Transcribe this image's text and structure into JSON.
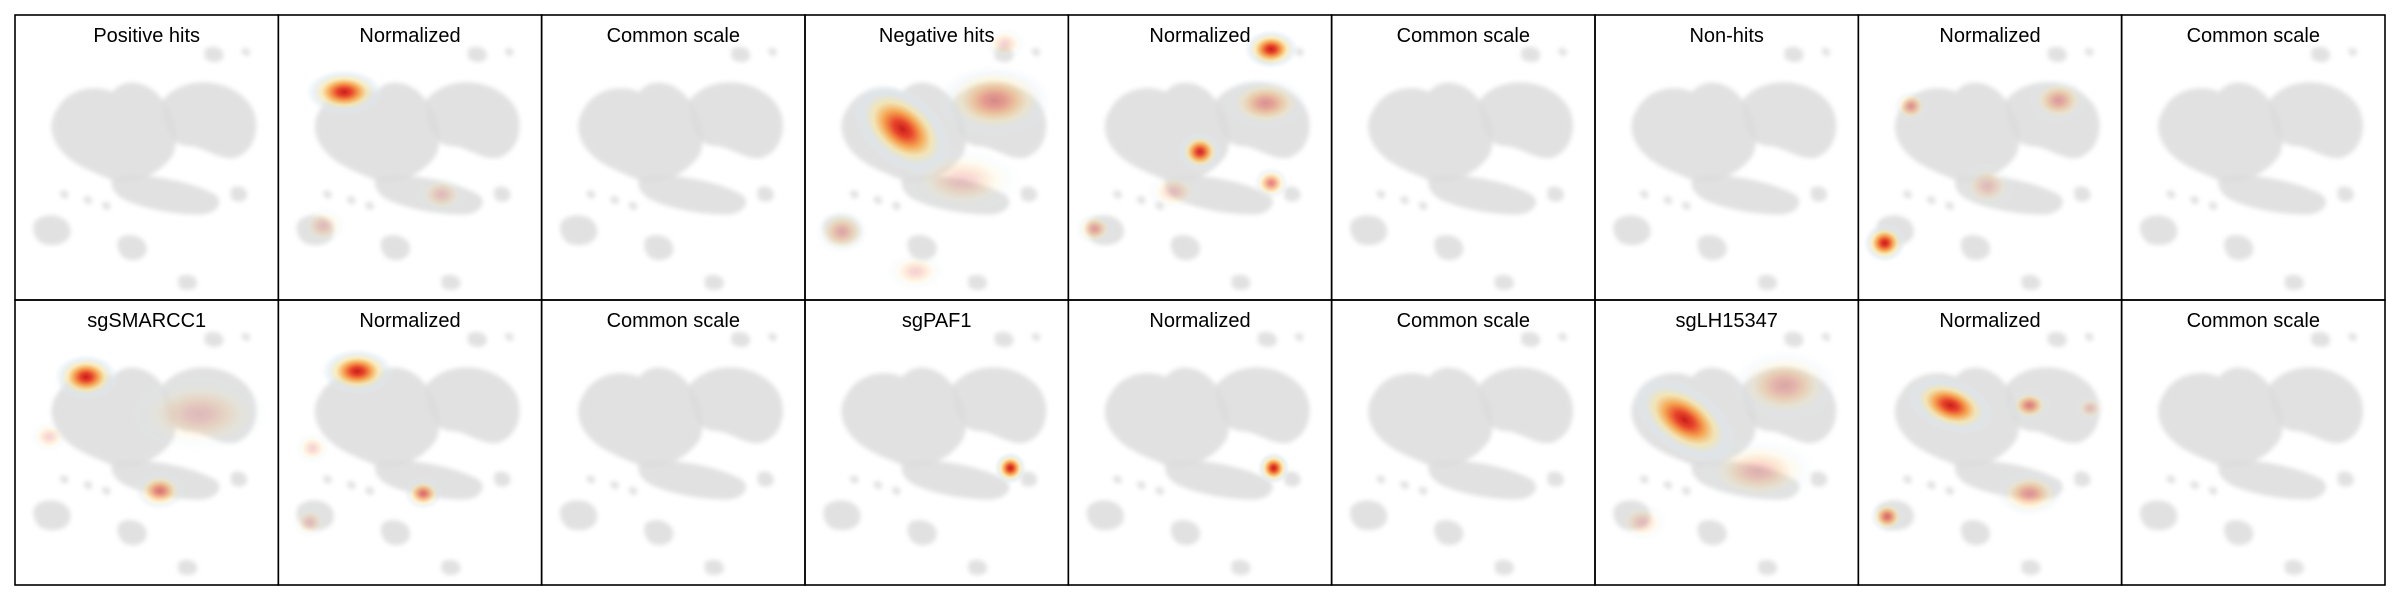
{
  "chart_data": {
    "type": "heatmap",
    "colormap": "YlOrRd density overlay on grey embedding",
    "background_color": "#dcdcdc",
    "frame_color": "#000000",
    "rows": [
      {
        "panels": [
          {
            "title": "Positive hits",
            "hotspots": []
          },
          {
            "title": "Normalized",
            "hotspots": [
              {
                "x": 0.25,
                "y": 0.27,
                "r": 0.07,
                "level": 1.0,
                "elong": 1.7,
                "angle": 0
              },
              {
                "x": 0.17,
                "y": 0.74,
                "r": 0.06,
                "level": 0.2,
                "elong": 1.2,
                "angle": 0
              },
              {
                "x": 0.62,
                "y": 0.63,
                "r": 0.06,
                "level": 0.15,
                "elong": 1.3,
                "angle": 0
              }
            ]
          },
          {
            "title": "Common scale",
            "hotspots": []
          },
          {
            "title": "Negative hits",
            "hotspots": [
              {
                "x": 0.37,
                "y": 0.4,
                "r": 0.11,
                "level": 1.0,
                "elong": 1.6,
                "angle": 40
              },
              {
                "x": 0.72,
                "y": 0.3,
                "r": 0.11,
                "level": 0.45,
                "elong": 1.6,
                "angle": 0
              },
              {
                "x": 0.14,
                "y": 0.76,
                "r": 0.07,
                "level": 0.3,
                "elong": 1.2,
                "angle": 0
              },
              {
                "x": 0.6,
                "y": 0.58,
                "r": 0.1,
                "level": 0.2,
                "elong": 1.8,
                "angle": 0
              },
              {
                "x": 0.42,
                "y": 0.9,
                "r": 0.06,
                "level": 0.15,
                "elong": 1.5,
                "angle": 0
              },
              {
                "x": 0.76,
                "y": 0.1,
                "r": 0.05,
                "level": 0.15,
                "elong": 1.3,
                "angle": 0
              }
            ]
          },
          {
            "title": "Normalized",
            "hotspots": [
              {
                "x": 0.77,
                "y": 0.12,
                "r": 0.06,
                "level": 1.0,
                "elong": 1.4,
                "angle": 0
              },
              {
                "x": 0.5,
                "y": 0.48,
                "r": 0.06,
                "level": 0.95,
                "elong": 1.1,
                "angle": 0
              },
              {
                "x": 0.77,
                "y": 0.59,
                "r": 0.05,
                "level": 0.55,
                "elong": 1.1,
                "angle": 0
              },
              {
                "x": 0.75,
                "y": 0.31,
                "r": 0.08,
                "level": 0.4,
                "elong": 1.6,
                "angle": 0
              },
              {
                "x": 0.1,
                "y": 0.75,
                "r": 0.05,
                "level": 0.35,
                "elong": 1.2,
                "angle": 0
              },
              {
                "x": 0.4,
                "y": 0.62,
                "r": 0.06,
                "level": 0.15,
                "elong": 1.4,
                "angle": 0
              }
            ]
          },
          {
            "title": "Common scale",
            "hotspots": []
          },
          {
            "title": "Non-hits",
            "hotspots": []
          },
          {
            "title": "Normalized",
            "hotspots": [
              {
                "x": 0.1,
                "y": 0.8,
                "r": 0.06,
                "level": 1.0,
                "elong": 1.1,
                "angle": 0
              },
              {
                "x": 0.2,
                "y": 0.32,
                "r": 0.05,
                "level": 0.4,
                "elong": 1.1,
                "angle": 0
              },
              {
                "x": 0.76,
                "y": 0.3,
                "r": 0.07,
                "level": 0.35,
                "elong": 1.3,
                "angle": 0
              },
              {
                "x": 0.49,
                "y": 0.6,
                "r": 0.07,
                "level": 0.2,
                "elong": 1.2,
                "angle": 0
              }
            ]
          },
          {
            "title": "Common scale",
            "hotspots": []
          }
        ]
      },
      {
        "panels": [
          {
            "title": "sgSMARCC1",
            "hotspots": [
              {
                "x": 0.27,
                "y": 0.27,
                "r": 0.07,
                "level": 1.0,
                "elong": 1.4,
                "angle": 0
              },
              {
                "x": 0.55,
                "y": 0.67,
                "r": 0.06,
                "level": 0.55,
                "elong": 1.3,
                "angle": 0
              },
              {
                "x": 0.7,
                "y": 0.4,
                "r": 0.12,
                "level": 0.15,
                "elong": 1.8,
                "angle": 0
              },
              {
                "x": 0.13,
                "y": 0.48,
                "r": 0.05,
                "level": 0.1,
                "elong": 1.2,
                "angle": 0
              }
            ]
          },
          {
            "title": "Normalized",
            "hotspots": [
              {
                "x": 0.3,
                "y": 0.25,
                "r": 0.07,
                "level": 1.0,
                "elong": 1.6,
                "angle": 0
              },
              {
                "x": 0.55,
                "y": 0.68,
                "r": 0.05,
                "level": 0.6,
                "elong": 1.2,
                "angle": 0
              },
              {
                "x": 0.13,
                "y": 0.52,
                "r": 0.05,
                "level": 0.15,
                "elong": 1.1,
                "angle": 0
              },
              {
                "x": 0.12,
                "y": 0.78,
                "r": 0.05,
                "level": 0.1,
                "elong": 1.1,
                "angle": 0
              }
            ]
          },
          {
            "title": "Common scale",
            "hotspots": []
          },
          {
            "title": "sgPAF1",
            "hotspots": [
              {
                "x": 0.78,
                "y": 0.59,
                "r": 0.05,
                "level": 1.0,
                "elong": 1.0,
                "angle": 0
              }
            ]
          },
          {
            "title": "Normalized",
            "hotspots": [
              {
                "x": 0.78,
                "y": 0.59,
                "r": 0.05,
                "level": 1.0,
                "elong": 1.0,
                "angle": 0
              }
            ]
          },
          {
            "title": "Common scale",
            "hotspots": []
          },
          {
            "title": "sgLH15347",
            "hotspots": [
              {
                "x": 0.34,
                "y": 0.42,
                "r": 0.1,
                "level": 1.0,
                "elong": 1.8,
                "angle": 35
              },
              {
                "x": 0.72,
                "y": 0.3,
                "r": 0.11,
                "level": 0.3,
                "elong": 1.5,
                "angle": 0
              },
              {
                "x": 0.62,
                "y": 0.6,
                "r": 0.1,
                "level": 0.25,
                "elong": 1.8,
                "angle": 0
              },
              {
                "x": 0.18,
                "y": 0.78,
                "r": 0.06,
                "level": 0.2,
                "elong": 1.3,
                "angle": 0
              }
            ]
          },
          {
            "title": "Normalized",
            "hotspots": [
              {
                "x": 0.35,
                "y": 0.37,
                "r": 0.08,
                "level": 1.0,
                "elong": 1.7,
                "angle": 20
              },
              {
                "x": 0.65,
                "y": 0.37,
                "r": 0.05,
                "level": 0.5,
                "elong": 1.3,
                "angle": 0
              },
              {
                "x": 0.11,
                "y": 0.76,
                "r": 0.05,
                "level": 0.6,
                "elong": 1.1,
                "angle": 0
              },
              {
                "x": 0.65,
                "y": 0.68,
                "r": 0.07,
                "level": 0.4,
                "elong": 1.5,
                "angle": 0
              },
              {
                "x": 0.88,
                "y": 0.38,
                "r": 0.04,
                "level": 0.15,
                "elong": 1.2,
                "angle": 0
              }
            ]
          },
          {
            "title": "Common scale",
            "hotspots": []
          }
        ]
      }
    ]
  }
}
